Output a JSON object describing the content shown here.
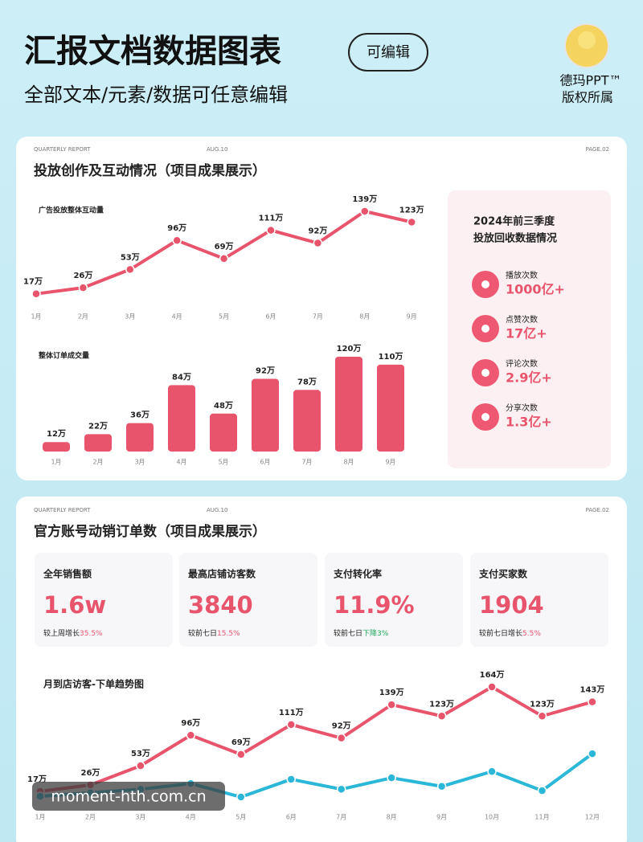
{
  "header": {
    "title": "汇报文档数据图表",
    "badge": "可编辑",
    "subtitle": "全部文本/元素/数据可任意编辑",
    "brand": [
      "德玛PPT™",
      "版权所属"
    ]
  },
  "panels": [
    {
      "report": "QUARTERLY REPORT",
      "date": "AUG.10",
      "page": "PAGE.02",
      "title": "投放创作及互动情况（项目成果展示）"
    },
    {
      "report": "QUARTERLY REPORT",
      "date": "AUG.10",
      "page": "PAGE.02",
      "title": "官方账号动销订单数（项目成果展示）"
    }
  ],
  "summary": {
    "title": [
      "2024年前三季度",
      "投放回收数据情况"
    ],
    "items": [
      {
        "label": "播放次数",
        "value": "1000亿+"
      },
      {
        "label": "点赞次数",
        "value": "17亿+"
      },
      {
        "label": "评论次数",
        "value": "2.9亿+"
      },
      {
        "label": "分享次数",
        "value": "1.3亿+"
      }
    ]
  },
  "stats": [
    {
      "label": "全年销售额",
      "value": "1.6w",
      "note": "较上周增长",
      "change": "35.5%"
    },
    {
      "label": "最高店铺访客数",
      "value": "3840",
      "note": "较前七日",
      "change": "15.5%"
    },
    {
      "label": "支付转化率",
      "value": "11.9%",
      "note": "较前七日",
      "change": "下降3%"
    },
    {
      "label": "支付买家数",
      "value": "1904",
      "note": "较前七日增长",
      "change": "5.5%"
    }
  ],
  "watermark": "moment-hth.com.cn",
  "chart_data": [
    {
      "type": "line",
      "title": "广告投放整体互动量",
      "color": "#e8546c",
      "categories": [
        "1月",
        "2月",
        "3月",
        "4月",
        "5月",
        "6月",
        "7月",
        "8月",
        "9月"
      ],
      "values": [
        17,
        26,
        53,
        96,
        69,
        111,
        92,
        139,
        123
      ],
      "value_labels": [
        "17万",
        "26万",
        "53万",
        "96万",
        "69万",
        "111万",
        "92万",
        "139万",
        "123万"
      ]
    },
    {
      "type": "bar",
      "title": "整体订单成交量",
      "color": "#e8546c",
      "categories": [
        "1月",
        "2月",
        "3月",
        "4月",
        "5月",
        "6月",
        "7月",
        "8月",
        "9月"
      ],
      "values": [
        12,
        22,
        36,
        84,
        48,
        92,
        78,
        120,
        110
      ],
      "value_labels": [
        "12万",
        "22万",
        "36万",
        "84万",
        "48万",
        "92万",
        "78万",
        "120万",
        "110万"
      ]
    },
    {
      "type": "line",
      "title": "月到店访客-下单趋势图",
      "categories": [
        "1月",
        "2月",
        "3月",
        "4月",
        "5月",
        "6月",
        "7月",
        "8月",
        "9月",
        "10月",
        "11月",
        "12月"
      ],
      "series": [
        {
          "color": "#e8546c",
          "values": [
            17,
            26,
            53,
            96,
            69,
            111,
            92,
            139,
            123,
            164,
            123,
            143
          ],
          "value_labels": [
            "17万",
            "26万",
            "53万",
            "96万",
            "69万",
            "111万",
            "92万",
            "139万",
            "123万",
            "164万",
            "123万",
            "143万"
          ]
        },
        {
          "color": "#2ab7d8",
          "values": [
            10,
            15,
            20,
            28,
            9,
            34,
            20,
            36,
            24,
            45,
            18,
            70
          ]
        }
      ]
    }
  ]
}
